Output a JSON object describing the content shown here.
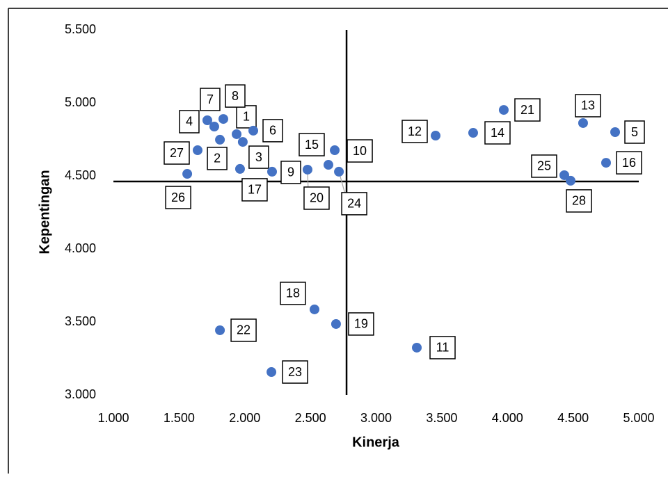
{
  "chart_data": {
    "type": "scatter",
    "xlabel": "Kinerja",
    "ylabel": "Kepentingan",
    "color": "#4472c4",
    "x": [
      1.938,
      1.811,
      1.985,
      1.715,
      4.82,
      2.065,
      1.768,
      1.837,
      2.208,
      2.685,
      3.31,
      3.453,
      4.576,
      3.739,
      2.637,
      4.751,
      1.964,
      2.531,
      2.695,
      2.478,
      3.972,
      1.811,
      2.203,
      2.717,
      4.433,
      1.562,
      1.641,
      4.481
    ],
    "values": [
      4.786,
      4.748,
      4.733,
      4.881,
      4.8,
      4.81,
      4.838,
      4.89,
      4.529,
      4.676,
      3.324,
      4.776,
      4.862,
      4.795,
      4.576,
      4.59,
      4.548,
      3.586,
      3.486,
      4.543,
      4.952,
      3.443,
      3.157,
      4.529,
      4.505,
      4.514,
      4.676,
      4.467
    ],
    "labels": [
      "1",
      "2",
      "3",
      "4",
      "5",
      "6",
      "7",
      "8",
      "9",
      "10",
      "11",
      "12",
      "13",
      "14",
      "15",
      "16",
      "17",
      "18",
      "19",
      "20",
      "21",
      "22",
      "23",
      "24",
      "25",
      "26",
      "27",
      "28"
    ],
    "xlim": [
      1,
      5
    ],
    "ylim": [
      3,
      5.5
    ],
    "xticks": [
      {
        "value": 1,
        "label": "1.000"
      },
      {
        "value": 1.5,
        "label": "1.500"
      },
      {
        "value": 2,
        "label": "2.000"
      },
      {
        "value": 2.5,
        "label": "2.500"
      },
      {
        "value": 3,
        "label": "3.000"
      },
      {
        "value": 3.5,
        "label": "3.500"
      },
      {
        "value": 4,
        "label": "4.000"
      },
      {
        "value": 4.5,
        "label": "4.500"
      },
      {
        "value": 5,
        "label": "5.000"
      }
    ],
    "yticks": [
      {
        "value": 3,
        "label": "3.000"
      },
      {
        "value": 3.5,
        "label": "3.500"
      },
      {
        "value": 4,
        "label": "4.000"
      },
      {
        "value": 4.5,
        "label": "4.500"
      },
      {
        "value": 5,
        "label": "5.000"
      },
      {
        "value": 5.5,
        "label": "5.500"
      }
    ],
    "xline": 2.775,
    "yline": 4.462
  }
}
